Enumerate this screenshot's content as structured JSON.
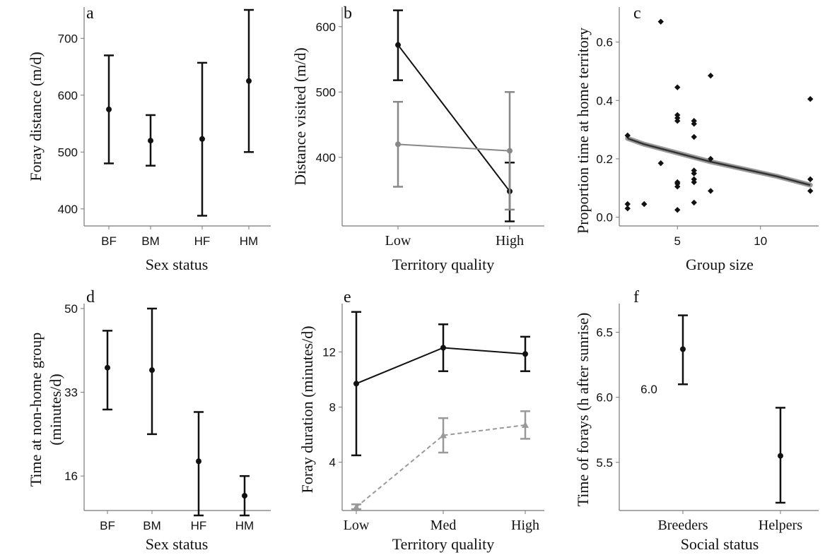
{
  "chart_data": [
    {
      "panel": "a",
      "type": "errorbar",
      "xlabel": "Sex status",
      "ylabel": "Foray distance (m/d)",
      "categories": [
        "BF",
        "BM",
        "HF",
        "HM"
      ],
      "ylim": [
        370,
        755
      ],
      "yticks": [
        400,
        500,
        600,
        700
      ],
      "series": [
        {
          "color": "#111111",
          "marker": "circle",
          "connect": false,
          "points": [
            {
              "x": "BF",
              "y": 575,
              "lo": 480,
              "hi": 670
            },
            {
              "x": "BM",
              "y": 520,
              "lo": 476,
              "hi": 565
            },
            {
              "x": "HF",
              "y": 523,
              "lo": 388,
              "hi": 657
            },
            {
              "x": "HM",
              "y": 625,
              "lo": 500,
              "hi": 750
            }
          ]
        }
      ]
    },
    {
      "panel": "b",
      "type": "line",
      "xlabel": "Territory quality",
      "ylabel": "Distance visited (m/d)",
      "categories": [
        "Low",
        "High"
      ],
      "ylim": [
        295,
        630
      ],
      "yticks": [
        400,
        500,
        600
      ],
      "series": [
        {
          "color": "#111111",
          "marker": "circle",
          "connect": true,
          "points": [
            {
              "x": "Low",
              "y": 572,
              "lo": 518,
              "hi": 625
            },
            {
              "x": "High",
              "y": 348,
              "lo": 302,
              "hi": 392
            }
          ]
        },
        {
          "color": "#888888",
          "marker": "circle",
          "connect": true,
          "points": [
            {
              "x": "Low",
              "y": 420,
              "lo": 355,
              "hi": 485
            },
            {
              "x": "High",
              "y": 410,
              "lo": 320,
              "hi": 500
            }
          ]
        }
      ]
    },
    {
      "panel": "c",
      "type": "scatter",
      "xlabel": "Group size",
      "ylabel": "Proportion time at home territory",
      "xlim": [
        1.5,
        13.5
      ],
      "xticks": [
        5,
        10
      ],
      "ylim": [
        -0.03,
        0.72
      ],
      "yticks": [
        0.0,
        0.2,
        0.4,
        0.6
      ],
      "points": [
        [
          2,
          0.28
        ],
        [
          2,
          0.045
        ],
        [
          2,
          0.03
        ],
        [
          3,
          0.045
        ],
        [
          4,
          0.185
        ],
        [
          4,
          0.67
        ],
        [
          5,
          0.445
        ],
        [
          5,
          0.35
        ],
        [
          5,
          0.34
        ],
        [
          5,
          0.33
        ],
        [
          5,
          0.12
        ],
        [
          5,
          0.115
        ],
        [
          5,
          0.105
        ],
        [
          5,
          0.025
        ],
        [
          6,
          0.33
        ],
        [
          6,
          0.32
        ],
        [
          6,
          0.275
        ],
        [
          6,
          0.16
        ],
        [
          6,
          0.15
        ],
        [
          6,
          0.13
        ],
        [
          6,
          0.12
        ],
        [
          6,
          0.05
        ],
        [
          7,
          0.485
        ],
        [
          7,
          0.2
        ],
        [
          7,
          0.09
        ],
        [
          13,
          0.405
        ],
        [
          13,
          0.13
        ],
        [
          13,
          0.09
        ]
      ],
      "fit": [
        [
          2,
          0.27
        ],
        [
          3,
          0.25
        ],
        [
          5,
          0.22
        ],
        [
          7,
          0.19
        ],
        [
          9,
          0.165
        ],
        [
          11,
          0.14
        ],
        [
          13,
          0.11
        ]
      ]
    },
    {
      "panel": "d",
      "type": "errorbar",
      "xlabel": "Sex status",
      "ylabel": [
        "Time at non-home group",
        "(minutes/d)"
      ],
      "categories": [
        "BF",
        "BM",
        "HF",
        "HM"
      ],
      "ylim": [
        9,
        51
      ],
      "yticks": [
        16,
        33,
        50
      ],
      "series": [
        {
          "color": "#111111",
          "marker": "circle",
          "connect": false,
          "points": [
            {
              "x": "BF",
              "y": 38,
              "lo": 29.5,
              "hi": 45.5
            },
            {
              "x": "BM",
              "y": 37.5,
              "lo": 24.5,
              "hi": 50
            },
            {
              "x": "HF",
              "y": 19,
              "lo": 8,
              "hi": 29
            },
            {
              "x": "HM",
              "y": 12,
              "lo": 8,
              "hi": 16
            }
          ]
        }
      ]
    },
    {
      "panel": "e",
      "type": "line",
      "xlabel": "Territory quality",
      "ylabel": "Foray duration (minutes/d)",
      "categories": [
        "Low",
        "Med",
        "High"
      ],
      "ylim": [
        0.5,
        15.5
      ],
      "yticks": [
        4,
        8,
        12
      ],
      "series": [
        {
          "color": "#111111",
          "marker": "circle",
          "connect": true,
          "dash": false,
          "points": [
            {
              "x": "Low",
              "y": 9.7,
              "lo": 4.5,
              "hi": 14.9
            },
            {
              "x": "Med",
              "y": 12.3,
              "lo": 10.6,
              "hi": 14.0
            },
            {
              "x": "High",
              "y": 11.85,
              "lo": 10.6,
              "hi": 13.1
            }
          ]
        },
        {
          "color": "#999999",
          "marker": "triangle",
          "connect": true,
          "dash": true,
          "points": [
            {
              "x": "Low",
              "y": 0.75,
              "lo": 0.6,
              "hi": 0.95
            },
            {
              "x": "Med",
              "y": 5.95,
              "lo": 4.7,
              "hi": 7.2
            },
            {
              "x": "High",
              "y": 6.7,
              "lo": 5.7,
              "hi": 7.7
            }
          ]
        }
      ]
    },
    {
      "panel": "f",
      "type": "errorbar",
      "xlabel": "Social status",
      "ylabel": "Time of forays (h after sunrise)",
      "categories": [
        "Breeders",
        "Helpers"
      ],
      "ylim": [
        5.13,
        6.72
      ],
      "yticks": [
        5.5,
        6.0,
        6.5
      ],
      "annotation": "6.0",
      "series": [
        {
          "color": "#111111",
          "marker": "circle",
          "connect": false,
          "points": [
            {
              "x": "Breeders",
              "y": 6.37,
              "lo": 6.1,
              "hi": 6.63
            },
            {
              "x": "Helpers",
              "y": 5.55,
              "lo": 5.19,
              "hi": 5.92
            }
          ]
        }
      ]
    }
  ]
}
